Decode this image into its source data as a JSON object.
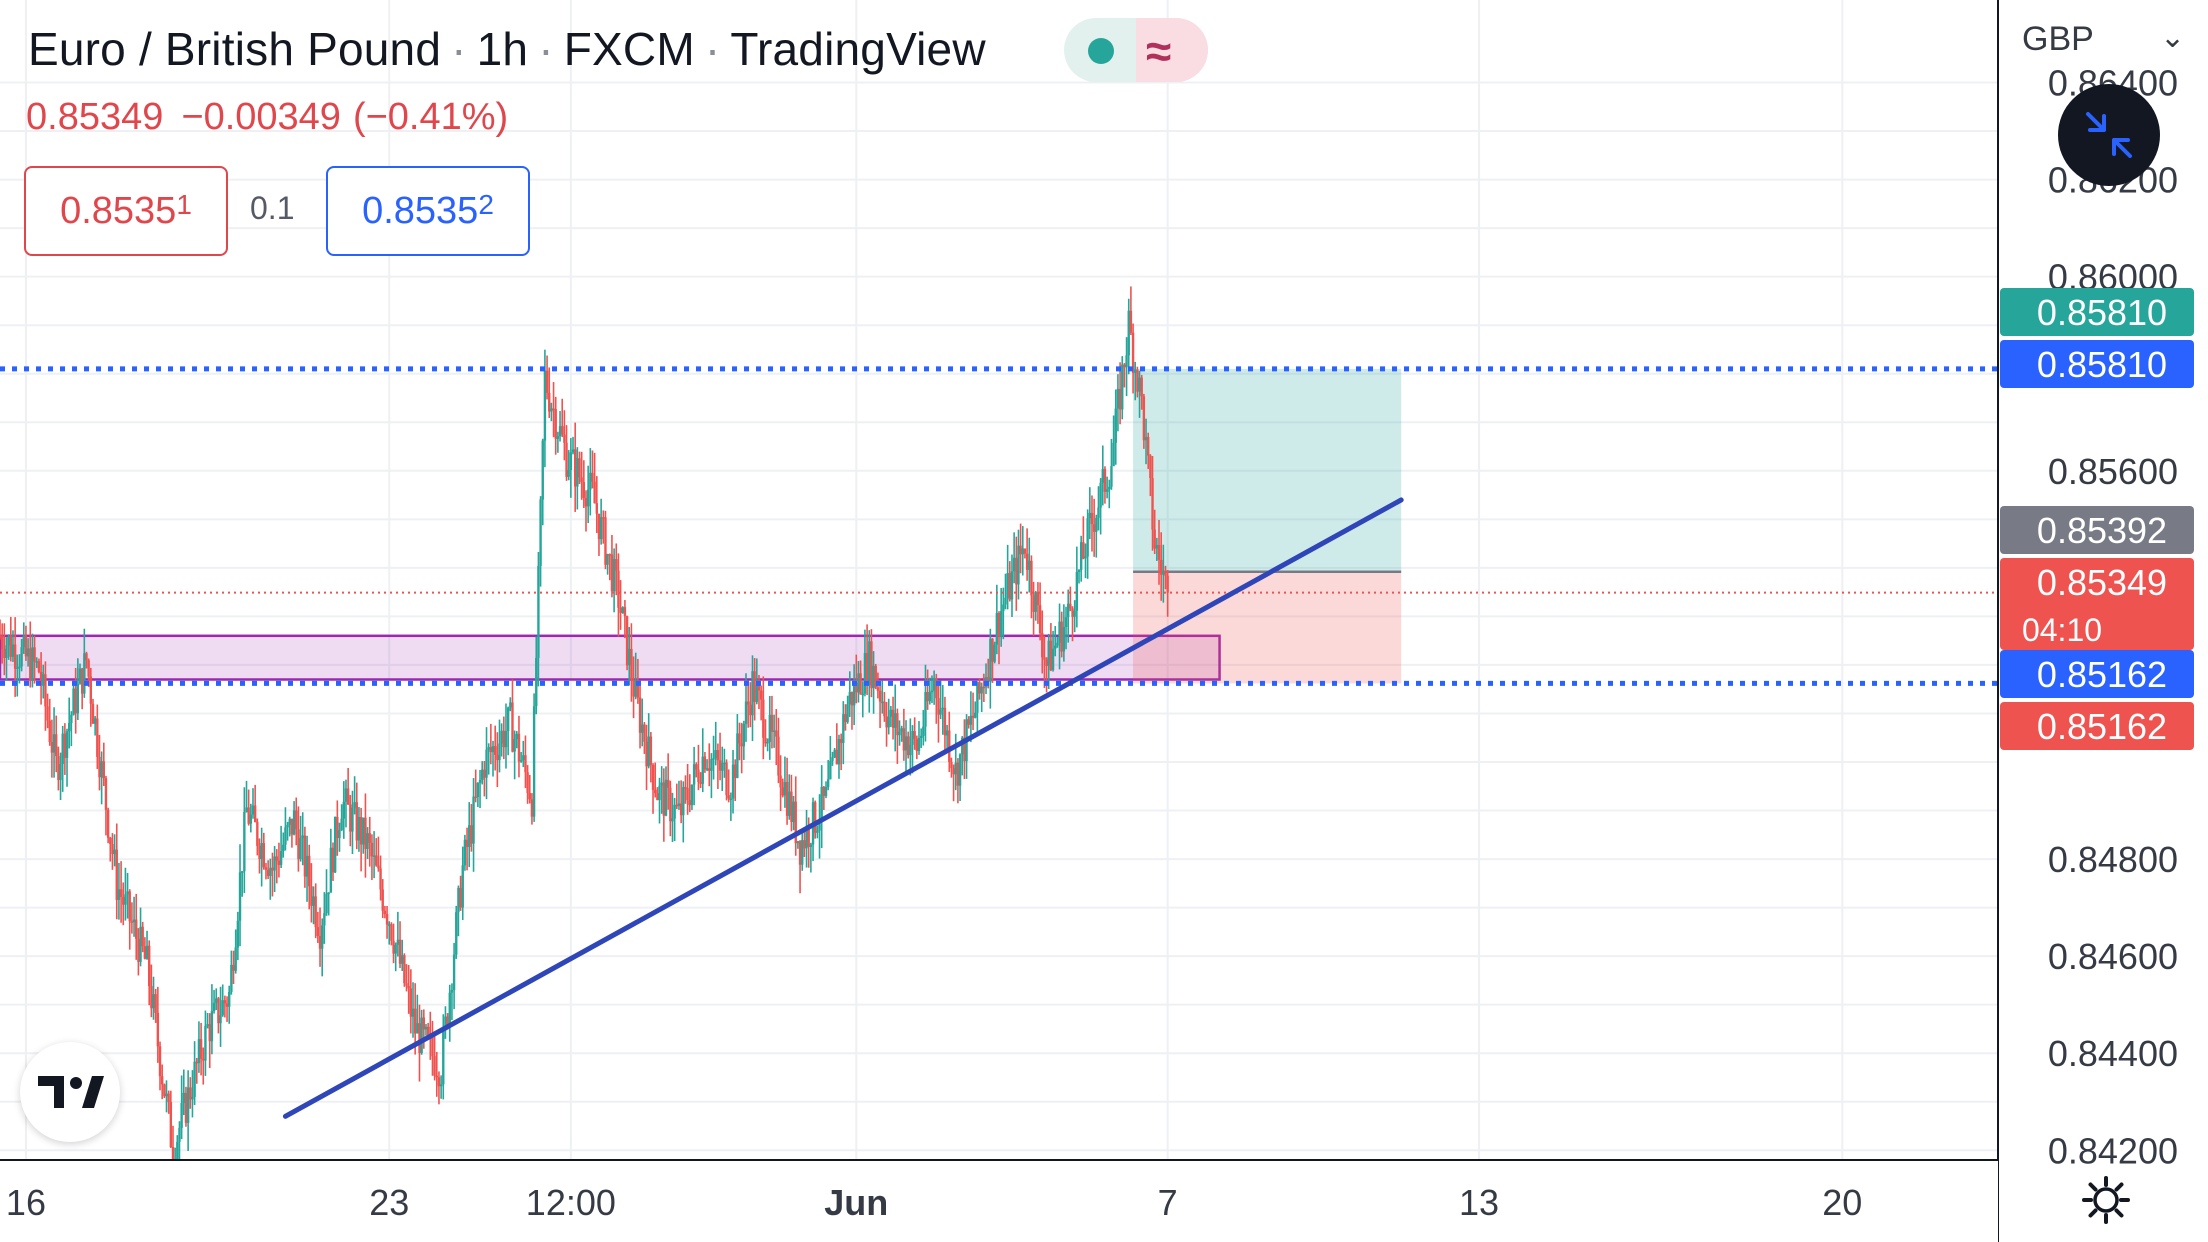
{
  "header": {
    "symbol": "Euro / British Pound",
    "interval": "1h",
    "broker": "FXCM",
    "source": "TradingView",
    "sep": "·"
  },
  "status": {
    "dot_color": "#26a69a",
    "wave_glyph": "≈"
  },
  "price_line": {
    "last": "0.85349",
    "change": "−0.00349",
    "change_pct": "(−0.41%)"
  },
  "quote": {
    "sell_main": "0.8535",
    "sell_sup": "1",
    "spread": "0.1",
    "buy_main": "0.8535",
    "buy_sup": "2"
  },
  "currency": "GBP",
  "colors": {
    "up": "#26a69a",
    "down": "#ef5350",
    "trend": "#2e46b8",
    "level": "#2962ff",
    "zone": "#9c27b0",
    "last_price": "#ef5350"
  },
  "chart_data": {
    "type": "candlestick",
    "ylim": [
      0.8418,
      0.8657
    ],
    "y_ticks": [
      "0.86400",
      "0.86200",
      "0.86000",
      "0.85600",
      "0.84800",
      "0.84600",
      "0.84400",
      "0.84200"
    ],
    "x_labels": [
      {
        "label": "16",
        "date": "2022-05-16"
      },
      {
        "label": "23",
        "date": "2022-05-23"
      },
      {
        "label": "12:00",
        "date": "2022-05-26 12:00"
      },
      {
        "label": "Jun",
        "date": "2022-06-01"
      },
      {
        "label": "7",
        "date": "2022-06-07"
      },
      {
        "label": "13",
        "date": "2022-06-13"
      },
      {
        "label": "20",
        "date": "2022-06-20"
      }
    ],
    "x_range": [
      "2022-05-15 12:00",
      "2022-06-23 00:00"
    ],
    "price_labels": [
      {
        "text": "0.85810",
        "value": 0.8581,
        "color": "#26a69a",
        "note": "target"
      },
      {
        "text": "0.85810",
        "value": 0.8581,
        "color": "#2962ff"
      },
      {
        "text": "0.85392",
        "value": 0.85392,
        "color": "#787b86"
      },
      {
        "text": "0.85349",
        "sub": "04:10",
        "value": 0.85349,
        "color": "#ef5350"
      },
      {
        "text": "0.85162",
        "value": 0.85162,
        "color": "#2962ff"
      },
      {
        "text": "0.85162",
        "value": 0.85162,
        "color": "#ef5350",
        "note": "stop"
      }
    ],
    "horizontal_levels": [
      0.8581,
      0.85162
    ],
    "last_price": 0.85349,
    "zone": {
      "from": "2022-05-15 12:00",
      "to": "2022-06-08 00:00",
      "low": 0.8517,
      "high": 0.8526
    },
    "trendline": {
      "from": [
        "2022-05-21 00:00",
        0.8427
      ],
      "to": [
        "2022-06-11 12:00",
        0.8554
      ]
    },
    "position": {
      "from": "2022-06-06 08:00",
      "to": "2022-06-11 12:00",
      "entry": 0.85392,
      "target": 0.8581,
      "stop": 0.85162
    },
    "close_path": [
      [
        "2022-05-15 12:00",
        0.8526
      ],
      [
        "2022-05-16 06:00",
        0.8519
      ],
      [
        "2022-05-16 14:00",
        0.8499
      ],
      [
        "2022-05-17 04:00",
        0.8521
      ],
      [
        "2022-05-17 18:00",
        0.8475
      ],
      [
        "2022-05-18 08:00",
        0.8458
      ],
      [
        "2022-05-18 20:00",
        0.842
      ],
      [
        "2022-05-19 12:00",
        0.8445
      ],
      [
        "2022-05-19 22:00",
        0.8452
      ],
      [
        "2022-05-20 06:00",
        0.849
      ],
      [
        "2022-05-20 18:00",
        0.8478
      ],
      [
        "2022-05-21 04:00",
        0.8488
      ],
      [
        "2022-05-21 16:00",
        0.8466
      ],
      [
        "2022-05-22 02:00",
        0.8492
      ],
      [
        "2022-05-22 14:00",
        0.8483
      ],
      [
        "2022-05-23 00:00",
        0.8468
      ],
      [
        "2022-05-23 12:00",
        0.8445
      ],
      [
        "2022-05-24 00:00",
        0.8437
      ],
      [
        "2022-05-24 10:00",
        0.8478
      ],
      [
        "2022-05-24 20:00",
        0.85
      ],
      [
        "2022-05-25 08:00",
        0.8508
      ],
      [
        "2022-05-25 18:00",
        0.8493
      ],
      [
        "2022-05-26 00:00",
        0.8579
      ],
      [
        "2022-05-26 10:00",
        0.8563
      ],
      [
        "2022-05-26 22:00",
        0.8555
      ],
      [
        "2022-05-27 10:00",
        0.8534
      ],
      [
        "2022-05-27 18:00",
        0.8513
      ],
      [
        "2022-05-28 04:00",
        0.8494
      ],
      [
        "2022-05-28 14:00",
        0.8489
      ],
      [
        "2022-05-29 02:00",
        0.8502
      ],
      [
        "2022-05-29 14:00",
        0.8496
      ],
      [
        "2022-05-30 00:00",
        0.8516
      ],
      [
        "2022-05-30 12:00",
        0.85
      ],
      [
        "2022-05-30 22:00",
        0.8483
      ],
      [
        "2022-05-31 10:00",
        0.8492
      ],
      [
        "2022-05-31 20:00",
        0.8512
      ],
      [
        "2022-06-01 06:00",
        0.8521
      ],
      [
        "2022-06-01 16:00",
        0.8508
      ],
      [
        "2022-06-02 04:00",
        0.8503
      ],
      [
        "2022-06-02 12:00",
        0.8517
      ],
      [
        "2022-06-02 22:00",
        0.8498
      ],
      [
        "2022-06-03 08:00",
        0.8512
      ],
      [
        "2022-06-03 18:00",
        0.853
      ],
      [
        "2022-06-04 06:00",
        0.8545
      ],
      [
        "2022-06-04 16:00",
        0.852
      ],
      [
        "2022-06-05 02:00",
        0.853
      ],
      [
        "2022-06-05 12:00",
        0.8548
      ],
      [
        "2022-06-05 22:00",
        0.8562
      ],
      [
        "2022-06-06 06:00",
        0.859
      ],
      [
        "2022-06-06 12:00",
        0.8574
      ],
      [
        "2022-06-06 18:00",
        0.8545
      ],
      [
        "2022-06-07 00:00",
        0.85349
      ]
    ]
  }
}
